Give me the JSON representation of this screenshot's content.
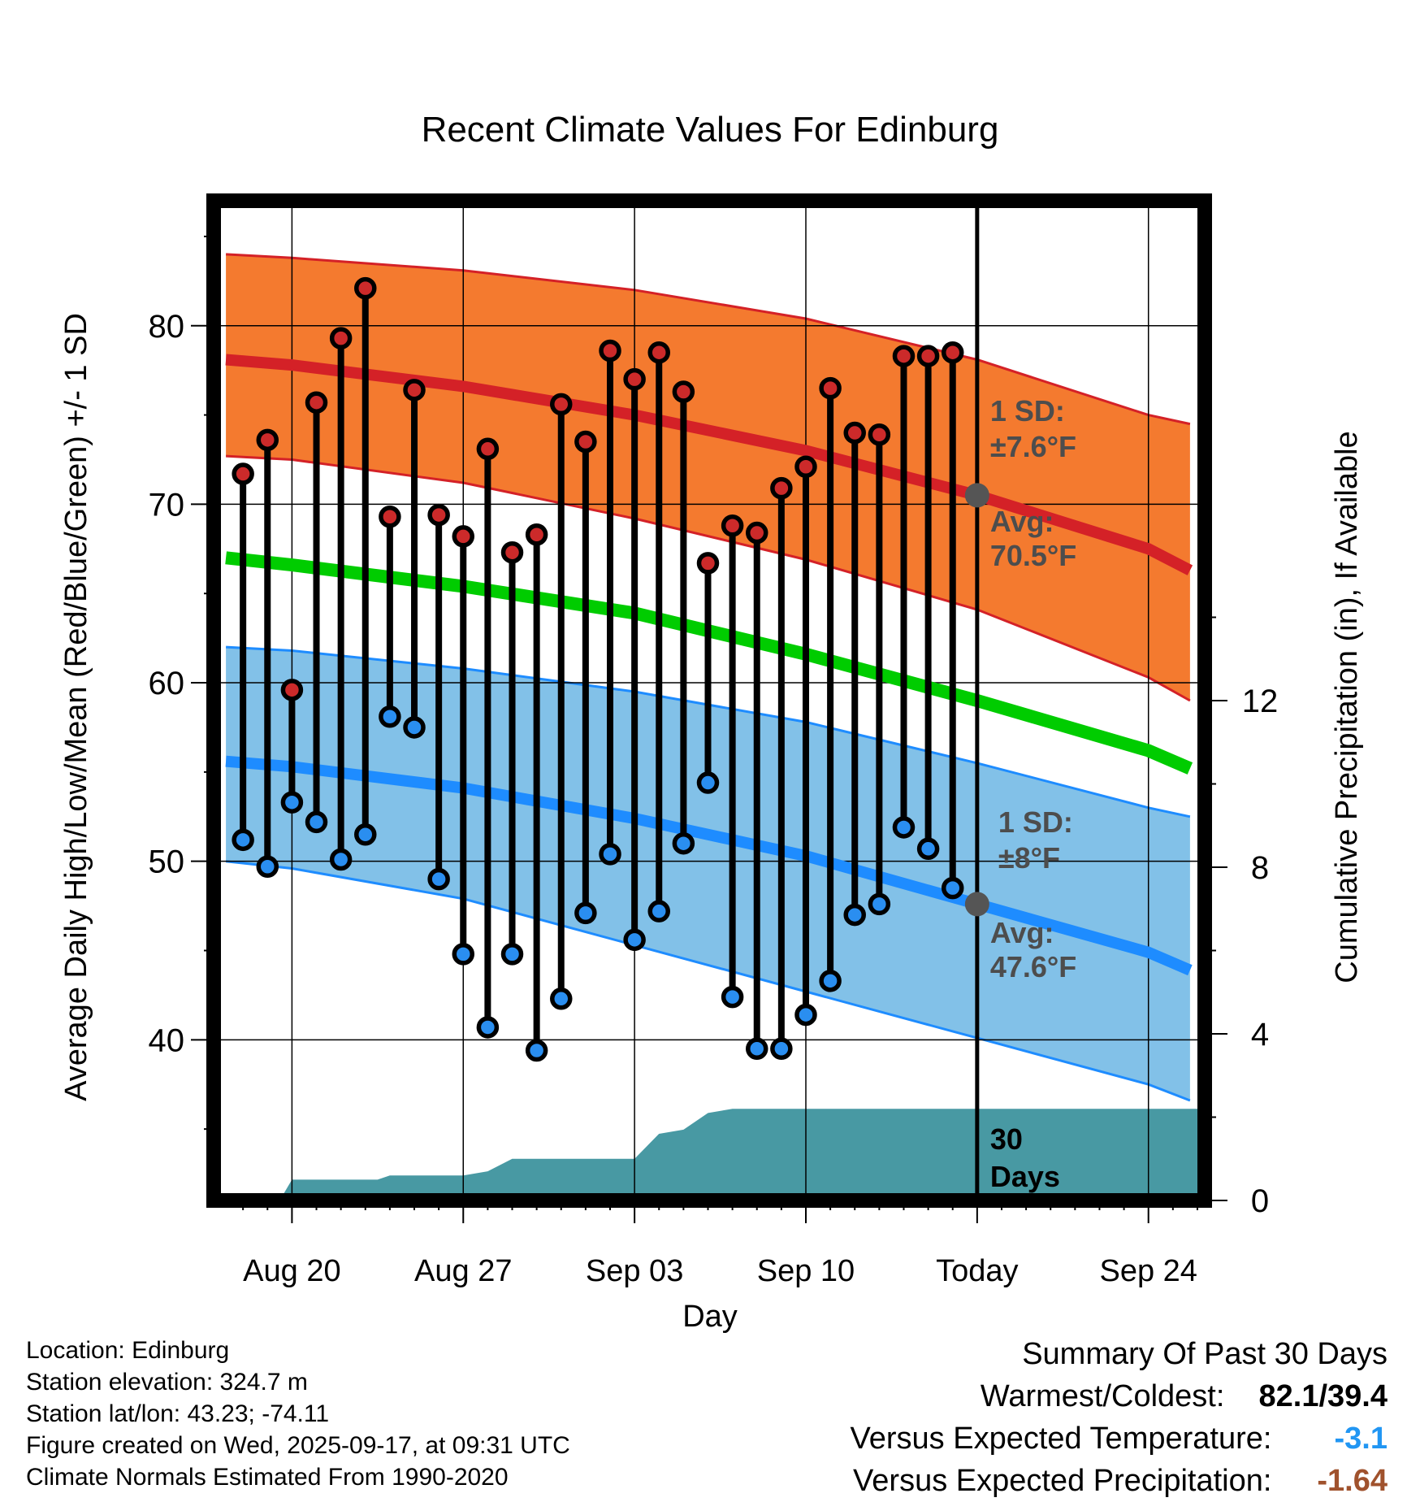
{
  "title": "Recent Climate Values For Edinburg",
  "chart_data": {
    "type": "line",
    "title": "Recent Climate Values For Edinburg",
    "xlabel": "Day",
    "ylabel": "Average Daily High/Low/Mean (Red/Blue/Green) +/- 1 SD",
    "y2label": "Cumulative Precipitation (in), If Available",
    "ylim": [
      31,
      87
    ],
    "y2lim": [
      0,
      24
    ],
    "xlim": [
      -3.2,
      37.3
    ],
    "x_ticks": [
      {
        "day": 0,
        "label": "Aug 20"
      },
      {
        "day": 7,
        "label": "Aug 27"
      },
      {
        "day": 14,
        "label": "Sep 03"
      },
      {
        "day": 21,
        "label": "Sep 10"
      },
      {
        "day": 28,
        "label": "Today"
      },
      {
        "day": 35,
        "label": "Sep 24"
      }
    ],
    "y_ticks": [
      40,
      50,
      60,
      70,
      80
    ],
    "y2_ticks": [
      0,
      4,
      8,
      12
    ],
    "today_day": 28,
    "normals": {
      "days": [
        -2.7,
        0,
        7,
        14,
        21,
        28,
        35,
        36.7
      ],
      "high_avg": [
        78.1,
        77.8,
        76.6,
        75.0,
        73.0,
        70.5,
        67.5,
        66.3
      ],
      "high_plus_sd": [
        84.0,
        83.8,
        83.1,
        82.0,
        80.4,
        78.1,
        75.0,
        74.5
      ],
      "high_minus_sd": [
        72.7,
        72.5,
        71.2,
        69.2,
        66.9,
        64.1,
        60.3,
        59.0
      ],
      "mean": [
        67.0,
        66.6,
        65.4,
        63.9,
        61.6,
        59.0,
        56.2,
        55.2
      ],
      "low_avg": [
        55.6,
        55.3,
        54.1,
        52.4,
        50.3,
        47.6,
        44.9,
        43.9
      ],
      "low_plus_sd": [
        62.0,
        61.8,
        60.8,
        59.5,
        57.8,
        55.5,
        53.0,
        52.5
      ],
      "low_minus_sd": [
        50.0,
        49.6,
        47.9,
        45.3,
        42.7,
        40.1,
        37.5,
        36.6
      ]
    },
    "daily": {
      "days": [
        -2,
        -1,
        0,
        1,
        2,
        3,
        4,
        5,
        6,
        7,
        8,
        9,
        10,
        11,
        12,
        13,
        14,
        15,
        16,
        17,
        18,
        19,
        20,
        21,
        22,
        23,
        24,
        25,
        26,
        27
      ],
      "highs": [
        71.7,
        73.6,
        59.6,
        75.7,
        79.3,
        82.1,
        69.3,
        76.4,
        69.4,
        68.2,
        73.1,
        67.3,
        68.3,
        75.6,
        73.5,
        78.6,
        77.0,
        78.5,
        76.3,
        66.7,
        68.8,
        68.4,
        70.9,
        72.1,
        76.5,
        74.0,
        73.9,
        78.3,
        78.3,
        78.5
      ],
      "lows": [
        51.2,
        49.7,
        53.3,
        52.2,
        50.1,
        51.5,
        58.1,
        57.5,
        49.0,
        44.8,
        40.7,
        44.8,
        39.4,
        42.3,
        47.1,
        50.4,
        45.6,
        47.2,
        51.0,
        54.4,
        42.4,
        39.5,
        39.5,
        41.4,
        43.3,
        47.0,
        47.6,
        51.9,
        50.7,
        48.5
      ]
    },
    "precip_cumulative": {
      "days": [
        -3.2,
        -0.5,
        0,
        3.5,
        4,
        7,
        8,
        9,
        13,
        14,
        15,
        16,
        17,
        18,
        37.3
      ],
      "values": [
        0,
        0,
        0.5,
        0.5,
        0.6,
        0.6,
        0.7,
        1.0,
        1.0,
        1.0,
        1.6,
        1.7,
        2.1,
        2.2,
        2.2
      ]
    },
    "annotations": {
      "high_sd_title": "1 SD:",
      "high_sd_value": "±7.6°F",
      "high_avg_title": "Avg:",
      "high_avg_value": "70.5°F",
      "low_sd_title": "1 SD:",
      "low_sd_value": "±8°F",
      "low_avg_title": "Avg:",
      "low_avg_value": "47.6°F",
      "days_number": "30",
      "days_word": "Days"
    },
    "colors": {
      "high_band": "#f47a2f",
      "high_avg_line": "#d42127",
      "high_band_edge": "#d42127",
      "mean_line": "#00cc00",
      "low_band": "#82c1e8",
      "low_avg_line": "#1e8cff",
      "low_band_edge": "#1e8cff",
      "precip": "#4899a3",
      "high_marker": "#cc2a2a",
      "low_marker": "#2a8ef0",
      "annotation_text": "#4d4d4d",
      "today_dot": "#555555"
    }
  },
  "footer": {
    "location": "Location: Edinburg",
    "elevation": "Station elevation: 324.7 m",
    "latlon": "Station lat/lon: 43.23; -74.11",
    "created": "Figure created on Wed, 2025-09-17, at 09:31 UTC",
    "normals": "Climate Normals Estimated From 1990-2020"
  },
  "summary": {
    "title": "Summary Of Past 30 Days",
    "warm_cold_label": "Warmest/Coldest:",
    "warm_cold_value": "82.1/39.4",
    "temp_label": "Versus Expected Temperature:",
    "temp_value": "-3.1",
    "temp_color": "#2196f3",
    "precip_label": "Versus Expected Precipitation:",
    "precip_value": "-1.64",
    "precip_color": "#a0522d"
  }
}
